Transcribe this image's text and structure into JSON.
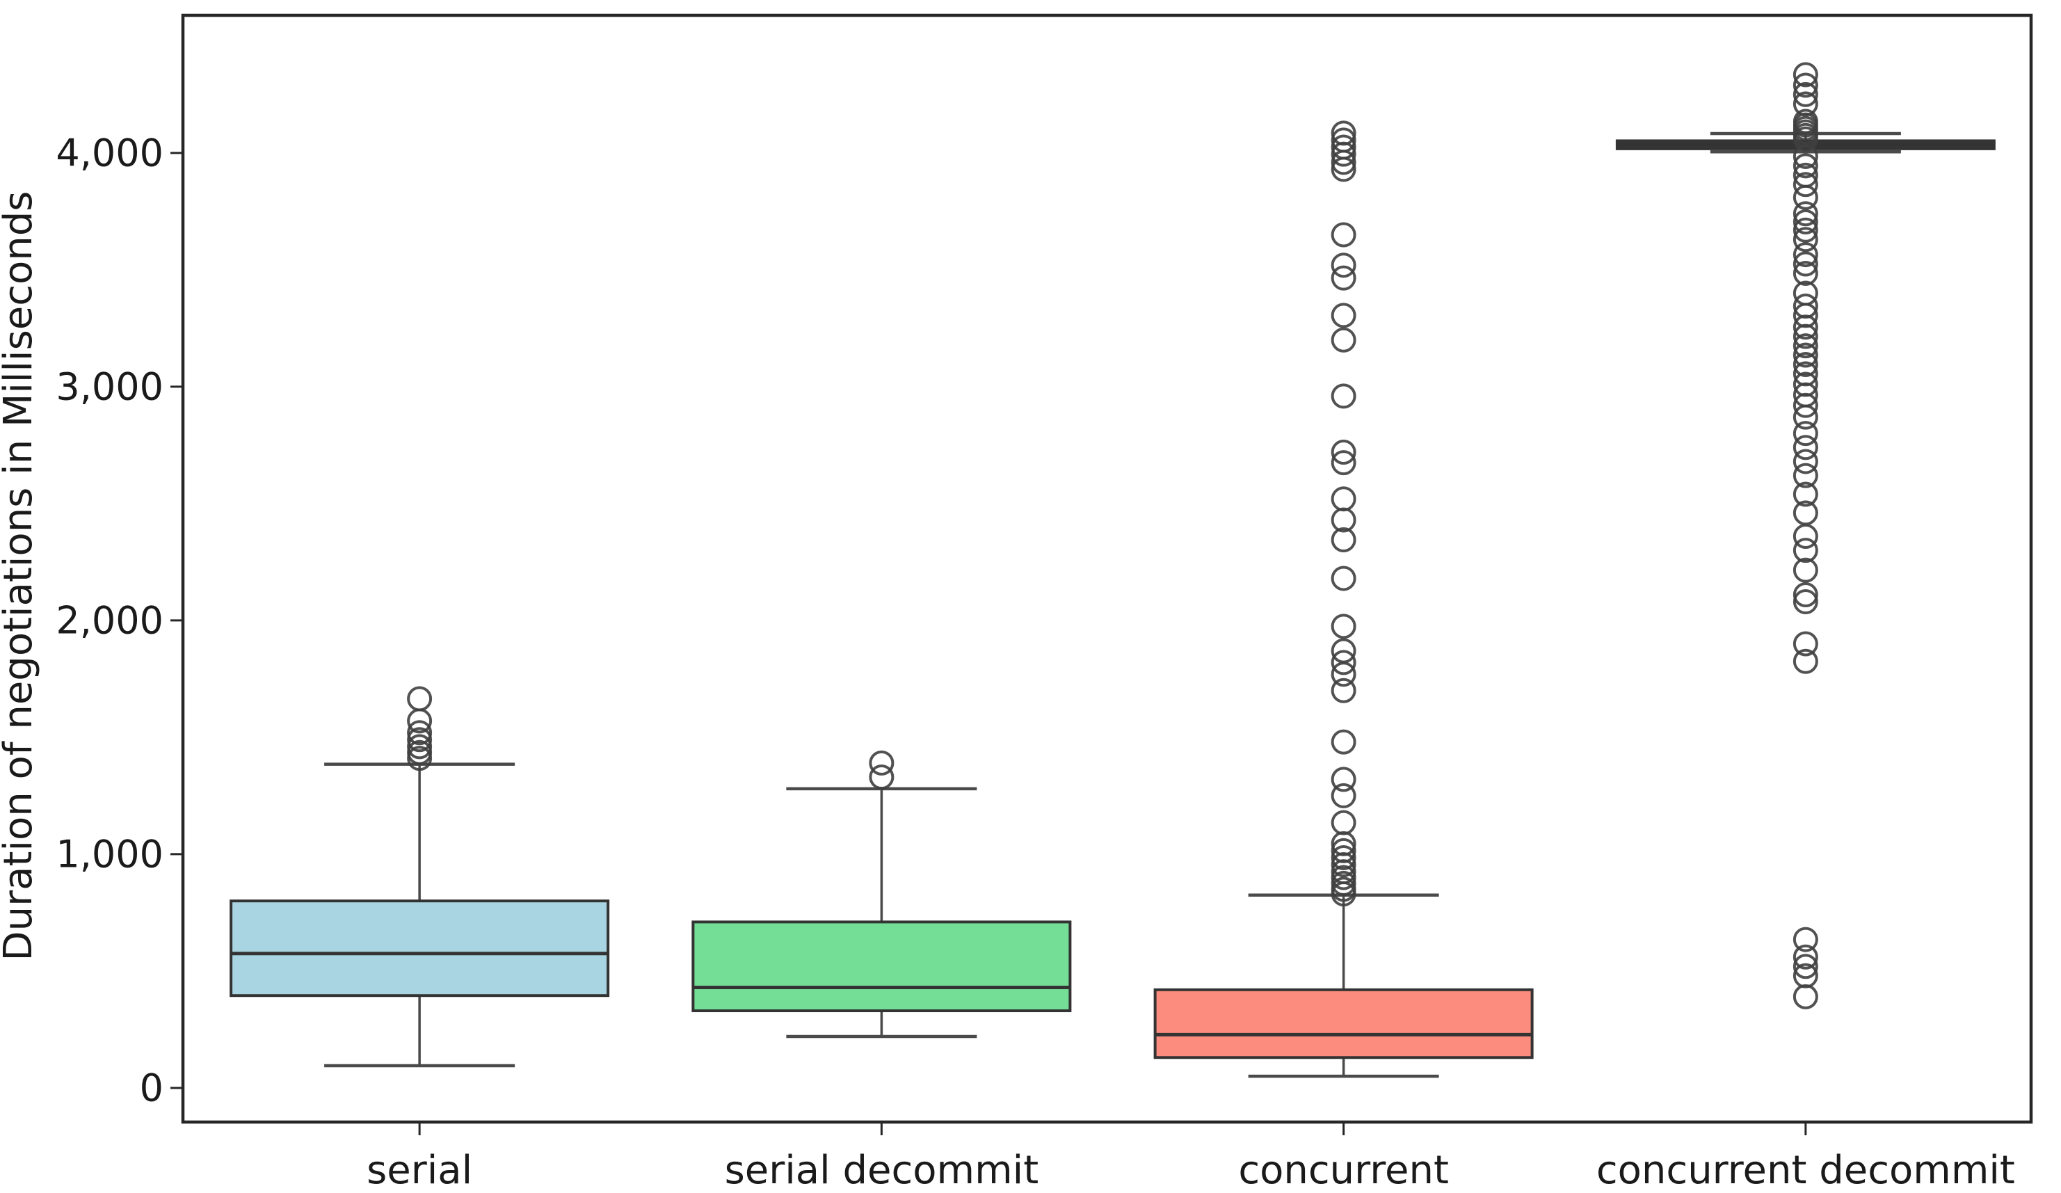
{
  "chart_data": {
    "type": "boxplot",
    "title": "",
    "xlabel": "",
    "ylabel": "Duration of negotiations in Milliseconds",
    "ylim": [
      -146,
      4589
    ],
    "grid": false,
    "legend": "none",
    "y_ticks": [
      {
        "value": 0,
        "label": "0"
      },
      {
        "value": 1000,
        "label": "1,000"
      },
      {
        "value": 2000,
        "label": "2,000"
      },
      {
        "value": 3000,
        "label": "3,000"
      },
      {
        "value": 4000,
        "label": "4,000"
      }
    ],
    "categories": [
      "serial",
      "serial decommit",
      "concurrent",
      "concurrent decommit"
    ],
    "series": [
      {
        "name": "serial",
        "color": "#a9d4e2",
        "q1": 395,
        "median": 575,
        "q3": 800,
        "whisker_low": 95,
        "whisker_high": 1385,
        "outliers": [
          1410,
          1435,
          1460,
          1490,
          1520,
          1570,
          1665
        ]
      },
      {
        "name": "serial decommit",
        "color": "#75de96",
        "q1": 330,
        "median": 430,
        "q3": 710,
        "whisker_low": 220,
        "whisker_high": 1280,
        "outliers": [
          1330,
          1390
        ]
      },
      {
        "name": "concurrent",
        "color": "#fc8d7e",
        "q1": 130,
        "median": 228,
        "q3": 420,
        "whisker_low": 50,
        "whisker_high": 825,
        "outliers": [
          830,
          850,
          875,
          900,
          925,
          955,
          985,
          1015,
          1045,
          1135,
          1250,
          1320,
          1480,
          1700,
          1770,
          1820,
          1870,
          1975,
          2180,
          2345,
          2430,
          2520,
          2675,
          2720,
          2960,
          3200,
          3305,
          3465,
          3520,
          3650,
          3930,
          3960,
          3995,
          4025,
          4055,
          4085
        ]
      },
      {
        "name": "concurrent decommit",
        "color": "#3a3a3a",
        "q1": 4018,
        "median": 4035,
        "q3": 4052,
        "whisker_low": 4005,
        "whisker_high": 4083,
        "outliers": [
          390,
          480,
          520,
          560,
          635,
          1825,
          1900,
          2080,
          2110,
          2215,
          2300,
          2360,
          2460,
          2540,
          2620,
          2680,
          2740,
          2800,
          2870,
          2920,
          2965,
          3010,
          3055,
          3095,
          3135,
          3175,
          3215,
          3255,
          3305,
          3345,
          3400,
          3485,
          3525,
          3565,
          3630,
          3670,
          3705,
          3740,
          3810,
          3865,
          3905,
          3945,
          3985,
          4060,
          4075,
          4090,
          4105,
          4120,
          4135,
          4210,
          4250,
          4290,
          4335
        ]
      }
    ],
    "style": {
      "frame_color": "#262626",
      "box_border_color": "#333333",
      "whisker_color": "#4a4a4a",
      "outlier_color": "#3f3f3f",
      "text_color": "#1a1a1a"
    }
  }
}
